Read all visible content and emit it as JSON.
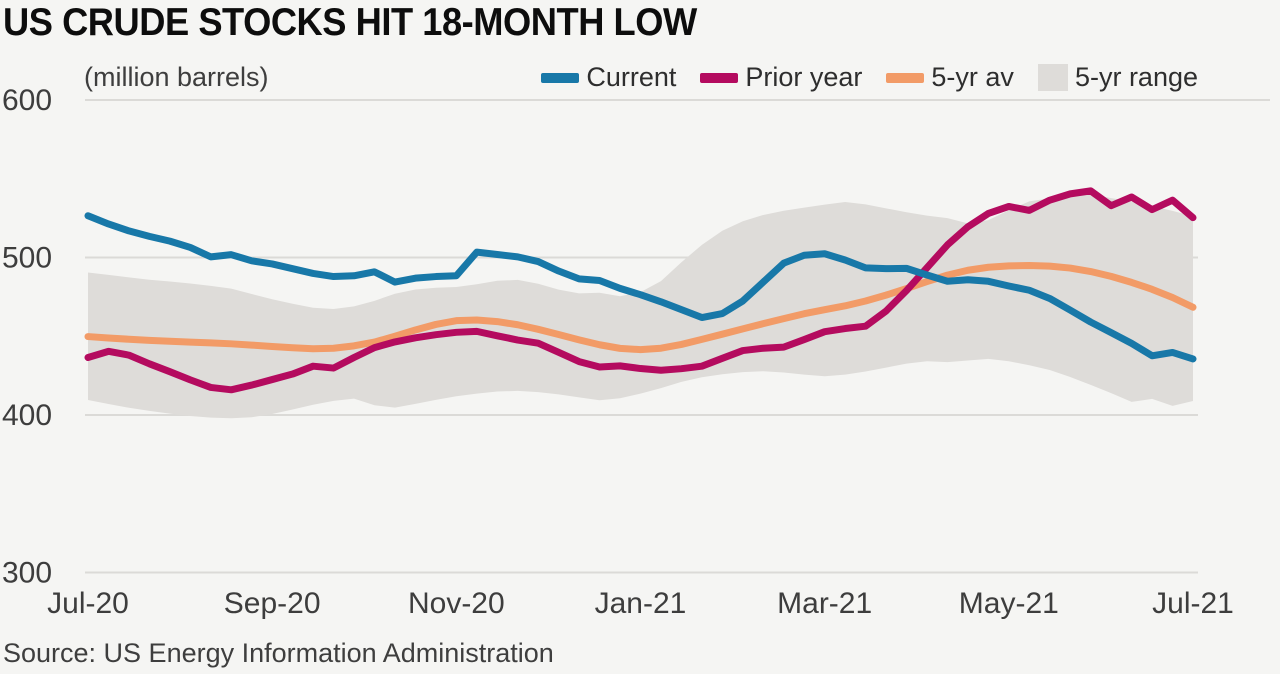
{
  "header": {
    "title": "US CRUDE STOCKS HIT 18-MONTH LOW",
    "unit_label": "(million barrels)"
  },
  "footer": {
    "source": "Source: US Energy Information Administration"
  },
  "palette": {
    "background": "#f5f5f3",
    "title_text": "#0d0d0d",
    "label_text": "#3e3e3e",
    "gridline": "#dbdad7",
    "current_blue": "#1878a8",
    "prior_year_crimson": "#b40b5f",
    "five_yr_avg_orange": "#f29b67",
    "five_yr_range_gray": "#dedcd9"
  },
  "chart_data": {
    "type": "line",
    "title": "US CRUDE STOCKS HIT 18-MONTH LOW",
    "ylabel": "(million barrels)",
    "xlabel": "",
    "ylim": [
      300,
      600
    ],
    "grid": true,
    "legend_position": "top-right",
    "y_ticks": [
      600,
      500,
      400,
      300
    ],
    "x_tick_labels": [
      "Jul-20",
      "Sep-20",
      "Nov-20",
      "Jan-21",
      "Mar-21",
      "May-21",
      "Jul-21"
    ],
    "x_unit": "weekly data, Jul 2020 - Jul 2021",
    "series": [
      {
        "name": "Current",
        "color": "#1878a8",
        "values": [
          526.5,
          521.3,
          516.9,
          513.4,
          510.4,
          506.4,
          500.4,
          501.8,
          497.9,
          495.9,
          492.9,
          489.9,
          487.9,
          488.4,
          490.9,
          484.4,
          486.9,
          487.9,
          488.4,
          503.4,
          501.9,
          500.4,
          497.4,
          491.4,
          486.4,
          485.4,
          480.4,
          476.4,
          471.9,
          466.9,
          461.9,
          464.4,
          472.4,
          484.4,
          496.4,
          501.4,
          502.4,
          498.4,
          493.4,
          492.9,
          493.1,
          488.9,
          484.9,
          485.9,
          484.9,
          481.9,
          479.2,
          474.0,
          466.6,
          459.0,
          452.3,
          445.5,
          437.6,
          439.7,
          435.6
        ]
      },
      {
        "name": "Prior year",
        "color": "#b40b5f",
        "values": [
          436.5,
          440.4,
          438.0,
          432.5,
          427.5,
          422.3,
          417.5,
          416.0,
          419.0,
          422.5,
          426.0,
          431.0,
          429.8,
          436.5,
          442.8,
          446.4,
          449.0,
          451.0,
          452.5,
          453.1,
          450.3,
          447.6,
          445.6,
          439.8,
          433.9,
          430.5,
          431.2,
          429.5,
          428.4,
          429.4,
          431.0,
          436.0,
          440.9,
          442.4,
          443.1,
          447.9,
          452.9,
          454.9,
          456.4,
          466.0,
          479.0,
          493.5,
          508.0,
          519.5,
          528.0,
          532.4,
          529.9,
          536.4,
          540.4,
          542.3,
          532.9,
          538.4,
          530.4,
          536.4,
          525.3
        ]
      },
      {
        "name": "5-yr av",
        "color": "#f29b67",
        "values": [
          449.8,
          448.9,
          448.1,
          447.4,
          446.8,
          446.3,
          445.8,
          445.2,
          444.4,
          443.5,
          442.7,
          442.1,
          442.4,
          443.9,
          446.3,
          450.0,
          454.0,
          457.5,
          459.9,
          460.3,
          459.3,
          457.3,
          454.4,
          451.1,
          447.7,
          444.6,
          442.3,
          441.5,
          442.4,
          444.8,
          448.0,
          451.3,
          454.7,
          458.0,
          461.2,
          464.3,
          466.9,
          469.3,
          472.4,
          476.1,
          480.3,
          484.7,
          488.8,
          491.9,
          493.8,
          494.7,
          494.9,
          494.5,
          493.3,
          491.1,
          488.0,
          484.2,
          479.8,
          474.6,
          468.4
        ]
      }
    ],
    "band": {
      "name": "5-yr range",
      "color": "#dedcd9",
      "upper": [
        490.5,
        489.0,
        487.4,
        485.9,
        484.8,
        483.5,
        482.0,
        480.2,
        476.8,
        473.5,
        470.6,
        468.1,
        467.3,
        469.0,
        472.5,
        477.0,
        479.7,
        480.8,
        481.3,
        483.0,
        485.2,
        485.8,
        483.3,
        479.6,
        477.2,
        477.6,
        475.4,
        478.0,
        485.0,
        497.0,
        508.0,
        517.0,
        523.0,
        527.0,
        529.7,
        531.7,
        533.6,
        535.2,
        533.7,
        531.2,
        528.7,
        526.6,
        525.0,
        521.7,
        523.7,
        530.0,
        535.6,
        537.6,
        539.4,
        540.2,
        537.7,
        535.6,
        532.6,
        529.6,
        526.2
      ],
      "lower": [
        409.5,
        407.0,
        404.6,
        402.6,
        400.9,
        399.4,
        398.3,
        397.9,
        398.6,
        400.6,
        403.5,
        406.5,
        409.0,
        410.4,
        406.2,
        404.7,
        407.1,
        409.6,
        411.9,
        413.6,
        414.9,
        415.3,
        414.5,
        413.1,
        411.2,
        409.4,
        410.6,
        413.6,
        417.1,
        421.0,
        424.0,
        425.9,
        427.2,
        427.8,
        427.0,
        425.6,
        424.6,
        425.6,
        427.6,
        430.1,
        432.6,
        434.1,
        433.6,
        434.6,
        435.6,
        434.1,
        431.6,
        428.6,
        424.1,
        419.1,
        413.9,
        408.3,
        410.2,
        405.8,
        408.9
      ]
    },
    "legend": {
      "items": [
        {
          "label": "Current",
          "swatch": "dash",
          "color": "#1878a8"
        },
        {
          "label": "Prior year",
          "swatch": "dash",
          "color": "#b40b5f"
        },
        {
          "label": "5-yr av",
          "swatch": "dash",
          "color": "#f29b67"
        },
        {
          "label": "5-yr range",
          "swatch": "square",
          "color": "#dedcd9"
        }
      ]
    }
  }
}
